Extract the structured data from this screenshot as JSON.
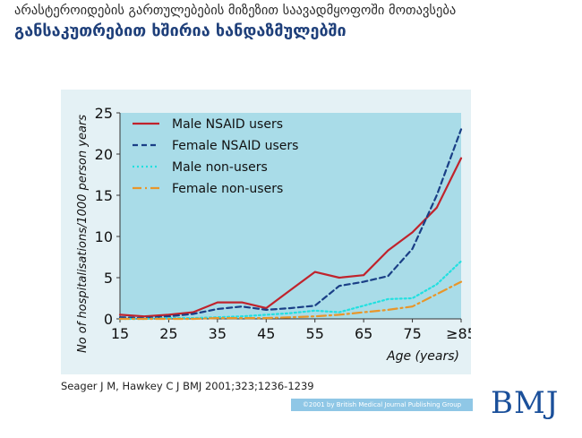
{
  "header": {
    "subtitle": "არასტეროიდების გართულებების მიზეზით საავადმყოფოში მოთავსება",
    "title": "განსაკუთრებით ხშირია ხანდაზმულებში"
  },
  "chart_data": {
    "type": "line",
    "title": "",
    "xlabel": "Age (years)",
    "ylabel": "No of hospitalisations/1000 person years",
    "xlim": [
      15,
      85
    ],
    "ylim": [
      0,
      25
    ],
    "x_ticks": [
      "15",
      "25",
      "35",
      "45",
      "55",
      "65",
      "75",
      "≥85"
    ],
    "y_ticks": [
      "0",
      "5",
      "10",
      "15",
      "20",
      "25"
    ],
    "grid": false,
    "legend_position": "top-left",
    "x": [
      15,
      20,
      25,
      30,
      35,
      40,
      45,
      50,
      55,
      60,
      65,
      70,
      75,
      80,
      85
    ],
    "series": [
      {
        "name": "Male NSAID users",
        "color": "#c0232c",
        "style": "solid",
        "values": [
          0.5,
          0.3,
          0.5,
          0.8,
          2.0,
          2.0,
          1.3,
          3.5,
          5.7,
          5.0,
          5.3,
          8.3,
          10.5,
          13.5,
          19.5
        ]
      },
      {
        "name": "Female NSAID users",
        "color": "#1a3f86",
        "style": "dashed",
        "values": [
          0.2,
          0.1,
          0.3,
          0.6,
          1.2,
          1.5,
          1.1,
          1.3,
          1.6,
          4.0,
          4.5,
          5.2,
          8.5,
          15.0,
          23.0
        ]
      },
      {
        "name": "Male non-users",
        "color": "#22e0e0",
        "style": "dotted",
        "values": [
          0.0,
          0.0,
          0.1,
          0.1,
          0.2,
          0.3,
          0.5,
          0.7,
          1.0,
          0.8,
          1.6,
          2.4,
          2.5,
          4.2,
          7.0
        ]
      },
      {
        "name": "Female non-users",
        "color": "#e8962a",
        "style": "dashdot",
        "values": [
          0.0,
          0.0,
          0.0,
          0.0,
          0.1,
          0.1,
          0.1,
          0.2,
          0.3,
          0.5,
          0.8,
          1.1,
          1.5,
          3.0,
          4.5
        ]
      }
    ]
  },
  "footer": {
    "citation": "Seager J M, Hawkey C J BMJ 2001;323;1236-1239",
    "copyright": "©2001 by British Medical Journal Publishing Group",
    "logo_text": "BMJ"
  }
}
